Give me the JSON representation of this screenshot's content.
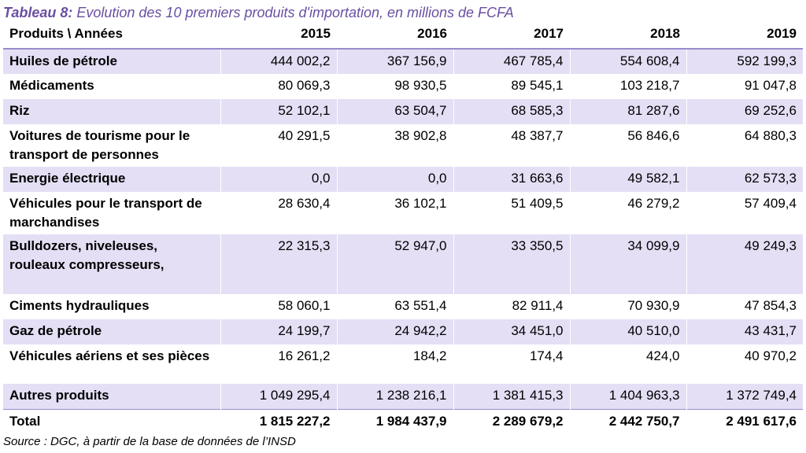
{
  "caption": {
    "label": "Tableau 8:",
    "text": " Evolution des 10 premiers produits d'importation, en millions de FCFA"
  },
  "table": {
    "header": [
      "Produits \\ Années",
      "2015",
      "2016",
      "2017",
      "2018",
      "2019"
    ],
    "rows": [
      {
        "label": "Huiles de pétrole",
        "values": [
          "444 002,2",
          "367 156,9",
          "467 785,4",
          "554 608,4",
          "592 199,3"
        ]
      },
      {
        "label": "Médicaments",
        "values": [
          "80 069,3",
          "98 930,5",
          "89 545,1",
          "103 218,7",
          "91 047,8"
        ]
      },
      {
        "label": "Riz",
        "values": [
          "52 102,1",
          "63 504,7",
          "68 585,3",
          "81 287,6",
          "69 252,6"
        ]
      },
      {
        "label": "Voitures de tourisme pour le transport de personnes",
        "values": [
          "40 291,5",
          "38 902,8",
          "48 387,7",
          "56 846,6",
          "64 880,3"
        ]
      },
      {
        "label": "Energie électrique",
        "values": [
          "0,0",
          "0,0",
          "31 663,6",
          "49 582,1",
          "62 573,3"
        ]
      },
      {
        "label": "Véhicules pour le transport de marchandises",
        "values": [
          "28 630,4",
          "36 102,1",
          "51 409,5",
          "46 279,2",
          "57 409,4"
        ]
      },
      {
        "label": "Bulldozers, niveleuses, rouleaux compresseurs,",
        "values": [
          "22 315,3",
          "52 947,0",
          "33 350,5",
          "34 099,9",
          "49 249,3"
        ]
      },
      {
        "label": "Ciments hydrauliques",
        "values": [
          "58 060,1",
          "63 551,4",
          "82 911,4",
          "70 930,9",
          "47 854,3"
        ]
      },
      {
        "label": "Gaz de pétrole",
        "values": [
          "24 199,7",
          "24 942,2",
          "34 451,0",
          "40 510,0",
          "43 431,7"
        ]
      },
      {
        "label": "Véhicules aériens et ses pièces",
        "values": [
          "16 261,2",
          "184,2",
          "174,4",
          "424,0",
          "40 970,2"
        ]
      },
      {
        "label": "Autres produits",
        "values": [
          "1 049 295,4",
          "1 238 216,1",
          "1 381 415,3",
          "1 404 963,3",
          "1 372 749,4"
        ]
      },
      {
        "label": "Total",
        "values": [
          "1 815 227,2",
          "1 984 437,9",
          "2 289 679,2",
          "2 442 750,7",
          "2 491 617,6"
        ]
      }
    ]
  },
  "source": "Source : DGC, à partir de la base de données de l’INSD",
  "colors": {
    "accent": "#6a4fa3",
    "row_shade": "#e4dff5",
    "rule": "#9a8ccc"
  }
}
